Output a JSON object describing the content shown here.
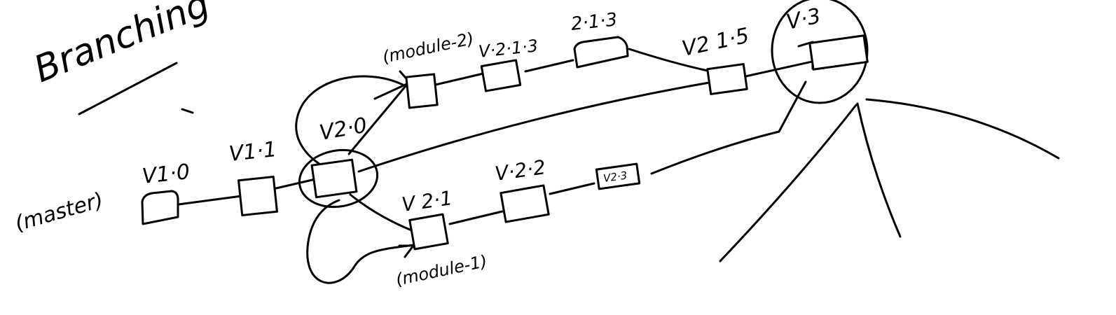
{
  "title": "Branching",
  "branches": {
    "master": "(master)",
    "module_1": "(module-1)",
    "module_2": "(module-2)"
  },
  "versions": {
    "v1_0": "V1·0",
    "v1_1": "V1·1",
    "v2_0": "V2·0",
    "v2_1": "V 2·1",
    "v2_2": "V·2·2",
    "v2_3": "V2·3",
    "v2_1_3": "V·2·1·3",
    "v_2_1_3_b": "2·1·3",
    "v2_1_5": "V2 1·5",
    "v3": "V·3"
  }
}
